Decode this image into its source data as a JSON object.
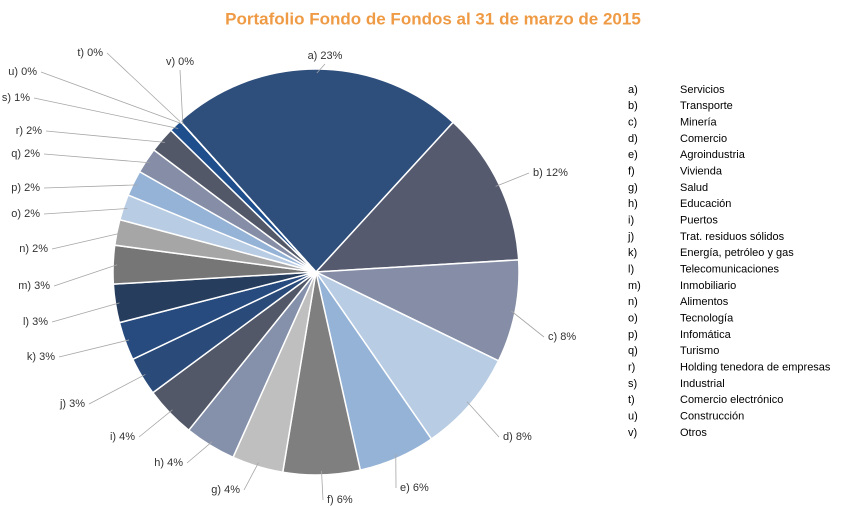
{
  "chart_data": {
    "type": "pie",
    "title": "Portafolio Fondo de Fondos al 31 de marzo de 2015",
    "codes": [
      "a)",
      "b)",
      "c)",
      "d)",
      "e)",
      "f)",
      "g)",
      "h)",
      "i)",
      "j)",
      "k)",
      "l)",
      "m)",
      "n)",
      "o)",
      "p)",
      "q)",
      "r)",
      "s)",
      "t)",
      "u)",
      "v)"
    ],
    "categories": [
      "Servicios",
      "Transporte",
      "Minería",
      "Comercio",
      "Agroindustria",
      "Vivienda",
      "Salud",
      "Educación",
      "Puertos",
      "Trat. residuos sólidos",
      "Energía, petróleo y gas",
      "Telecomunicaciones",
      "Inmobiliario",
      "Alimentos",
      "Tecnología",
      "Infomática",
      "Turismo",
      "Holding tenedora de empresas",
      "Industrial",
      "Comercio electrónico",
      "Construcción",
      "Otros"
    ],
    "values": [
      23,
      12,
      8,
      8,
      6,
      6,
      4,
      4,
      4,
      3,
      3,
      3,
      3,
      2,
      2,
      2,
      2,
      2,
      1,
      0,
      0,
      0
    ],
    "value_labels": [
      "a) 23%",
      "b) 12%",
      "c) 8%",
      "d) 8%",
      "e) 6%",
      "f) 6%",
      "g) 4%",
      "h) 4%",
      "i) 4%",
      "j) 3%",
      "k) 3%",
      "l) 3%",
      "m) 3%",
      "n) 2%",
      "o) 2%",
      "p) 2%",
      "q) 2%",
      "r) 2%",
      "s) 1%",
      "t) 0%",
      "u) 0%",
      "v) 0%"
    ],
    "colors": [
      "#2e4e7c",
      "#555a6e",
      "#858ea6",
      "#b8cce4",
      "#95b3d7",
      "#7f7f7f",
      "#bfbfbf",
      "#8591ab",
      "#525868",
      "#2a4b7a",
      "#284b7f",
      "#263d5e",
      "#767676",
      "#a6a6a6",
      "#b8cce4",
      "#95b3d7",
      "#858ea6",
      "#525868",
      "#1f4e8c",
      "#3b5f8f",
      "#8090b0",
      "#2e4d7b"
    ]
  }
}
